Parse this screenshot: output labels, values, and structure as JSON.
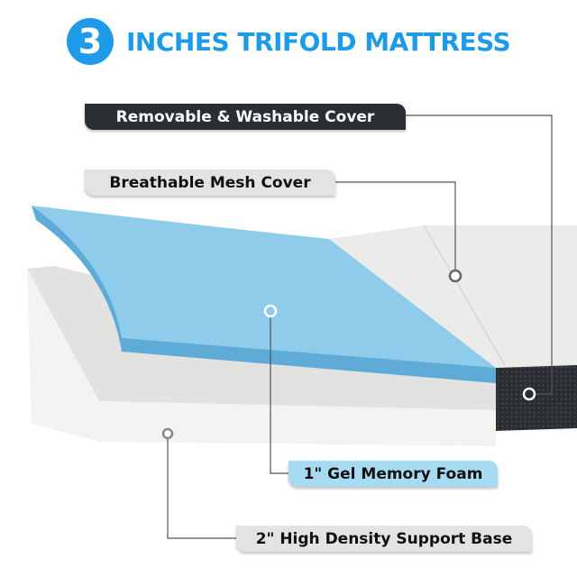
{
  "title": {
    "number": "3",
    "text": "INCHES TRIFOLD MATTRESS",
    "color": "#1e9be8"
  },
  "callouts": [
    {
      "label": "Removable & Washable Cover",
      "color": "#2b2e33"
    },
    {
      "label": "Breathable Mesh Cover",
      "color": "#e3e3e1"
    },
    {
      "label": "1\" Gel  Memory Foam",
      "color": "#a7dbf2"
    },
    {
      "label": "2\"  High Density Support Base",
      "color": "#e3e3e1"
    }
  ]
}
